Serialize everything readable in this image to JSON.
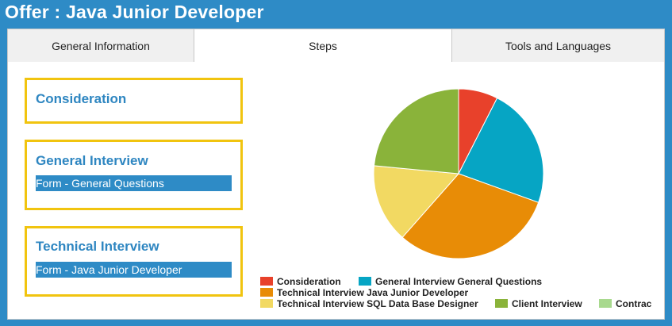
{
  "header": {
    "title": "Offer : Java Junior Developer"
  },
  "tabs": [
    {
      "label": "General Information",
      "active": false
    },
    {
      "label": "Steps",
      "active": true
    },
    {
      "label": "Tools and Languages",
      "active": false
    }
  ],
  "steps": [
    {
      "title": "Consideration",
      "form": null
    },
    {
      "title": "General Interview",
      "form": "Form - General Questions"
    },
    {
      "title": "Technical Interview",
      "form": "Form - Java Junior Developer"
    }
  ],
  "colors": {
    "header_bg": "#2e8bc6",
    "step_border": "#f1c40f",
    "step_title": "#2e86c1",
    "form_link_bg": "#2e8bc6"
  },
  "chart_data": {
    "type": "pie",
    "series": [
      {
        "name": "Consideration",
        "value": 7.5,
        "color": "#e8412b"
      },
      {
        "name": "General Interview General Questions",
        "value": 23,
        "color": "#06a5c4"
      },
      {
        "name": "Technical Interview Java Junior Developer",
        "value": 31,
        "color": "#e88c06"
      },
      {
        "name": "Technical Interview SQL Data Base Designer",
        "value": 15,
        "color": "#f2d962"
      },
      {
        "name": "Client Interview",
        "value": 23.5,
        "color": "#8ab33a"
      },
      {
        "name": "Contrac",
        "value": 0,
        "color": "#a8d98e"
      }
    ],
    "legend_position": "bottom"
  }
}
